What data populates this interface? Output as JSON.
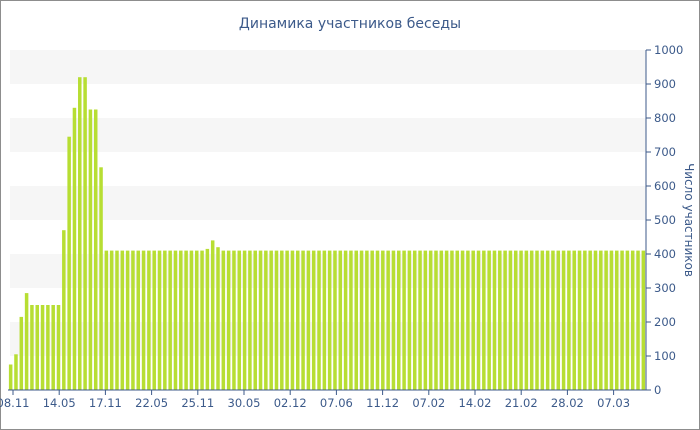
{
  "chart_data": {
    "type": "bar",
    "title": "Динамика участников беседы",
    "xlabel": "",
    "ylabel": "Число участников",
    "ylim": [
      0,
      1000
    ],
    "yticks": [
      0,
      100,
      200,
      300,
      400,
      500,
      600,
      700,
      800,
      900,
      1000
    ],
    "yaxis_position": "right",
    "grid": "alternating horizontal bands",
    "legend": "none",
    "x_tick_labels": [
      "08.11",
      "14.05",
      "17.11",
      "22.05",
      "25.11",
      "30.05",
      "02.12",
      "07.06",
      "11.12",
      "07.02",
      "14.02",
      "21.02",
      "28.02",
      "07.03"
    ],
    "values": [
      75,
      105,
      215,
      285,
      250,
      250,
      250,
      250,
      250,
      250,
      470,
      745,
      830,
      920,
      920,
      825,
      825,
      655,
      410,
      410,
      410,
      410,
      410,
      410,
      410,
      410,
      410,
      410,
      410,
      410,
      410,
      410,
      410,
      410,
      410,
      410,
      410,
      415,
      440,
      420,
      410,
      410,
      410,
      410,
      410,
      410,
      410,
      410,
      410,
      410,
      410,
      410,
      410,
      410,
      410,
      410,
      410,
      410,
      410,
      410,
      410,
      410,
      410,
      410,
      410,
      410,
      410,
      410,
      410,
      410,
      410,
      410,
      410,
      410,
      410,
      410,
      410,
      410,
      410,
      410,
      410,
      410,
      410,
      410,
      410,
      410,
      410,
      410,
      410,
      410,
      410,
      410,
      410,
      410,
      410,
      410,
      410,
      410,
      410,
      410,
      410,
      410,
      410,
      410,
      410,
      410,
      410,
      410,
      410,
      410,
      410,
      410,
      410,
      410,
      410,
      410,
      410,
      410,
      410,
      410
    ],
    "colors": {
      "bar": "#b7de33",
      "band": "#f6f6f6",
      "axis": "#3c5a8a",
      "text": "#3c5a8a"
    }
  }
}
